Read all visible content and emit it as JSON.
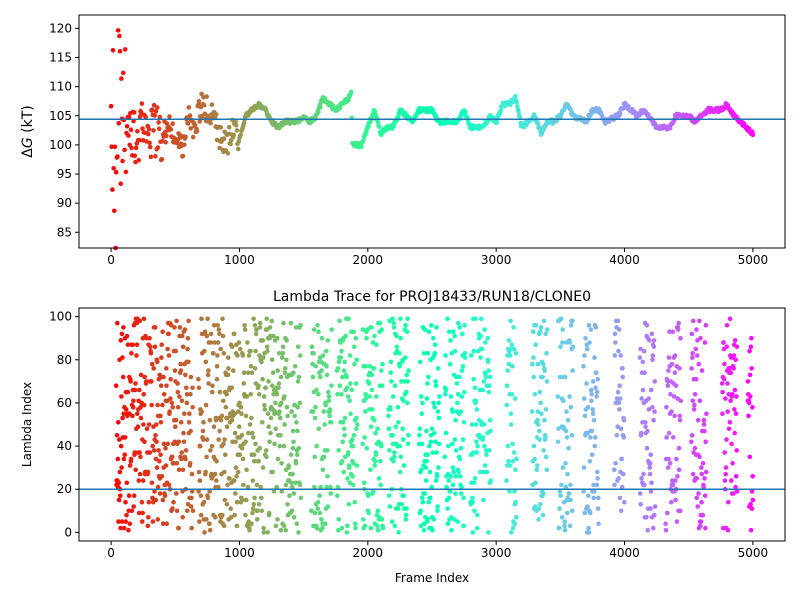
{
  "chart_data": [
    {
      "type": "scatter",
      "title": "",
      "xlabel": "",
      "ylabel": "ΔG (kT)",
      "xlim": [
        -250,
        5250
      ],
      "ylim": [
        82.3,
        122.3
      ],
      "xticks": [
        0,
        1000,
        2000,
        3000,
        4000,
        5000
      ],
      "yticks": [
        85,
        90,
        95,
        100,
        105,
        110,
        115,
        120
      ],
      "hline": 104.4,
      "hline_color": "#1f77b4",
      "colormap": "rainbow (red at frame 0 to violet at frame 5000)",
      "frames": 5000,
      "trace_keypoints": [
        [
          0,
          110
        ],
        [
          20,
          100
        ],
        [
          40,
          91
        ],
        [
          60,
          115
        ],
        [
          80,
          103
        ],
        [
          100,
          109
        ],
        [
          150,
          104
        ],
        [
          200,
          101
        ],
        [
          250,
          104
        ],
        [
          300,
          102
        ],
        [
          350,
          103
        ],
        [
          400,
          101
        ],
        [
          450,
          104
        ],
        [
          500,
          102
        ],
        [
          550,
          99
        ],
        [
          600,
          105
        ],
        [
          650,
          102
        ],
        [
          700,
          107
        ],
        [
          750,
          106
        ],
        [
          800,
          105
        ],
        [
          850,
          101
        ],
        [
          900,
          100
        ],
        [
          950,
          103
        ],
        [
          1000,
          101
        ],
        [
          1050,
          105
        ],
        [
          1100,
          106
        ],
        [
          1150,
          107
        ],
        [
          1200,
          106
        ],
        [
          1250,
          104
        ],
        [
          1300,
          103
        ],
        [
          1350,
          104
        ],
        [
          1400,
          104
        ],
        [
          1450,
          104
        ],
        [
          1500,
          105
        ],
        [
          1550,
          104
        ],
        [
          1600,
          105
        ],
        [
          1650,
          108
        ],
        [
          1700,
          107
        ],
        [
          1750,
          106
        ],
        [
          1800,
          107
        ],
        [
          1850,
          108
        ],
        [
          1870,
          109
        ],
        [
          1880,
          100
        ],
        [
          1950,
          100
        ],
        [
          2000,
          103
        ],
        [
          2050,
          106
        ],
        [
          2080,
          104
        ],
        [
          2100,
          102
        ],
        [
          2150,
          103
        ],
        [
          2200,
          103
        ],
        [
          2250,
          106
        ],
        [
          2300,
          105
        ],
        [
          2350,
          104
        ],
        [
          2400,
          106
        ],
        [
          2450,
          106
        ],
        [
          2500,
          106
        ],
        [
          2550,
          104
        ],
        [
          2600,
          104
        ],
        [
          2700,
          104
        ],
        [
          2750,
          106
        ],
        [
          2800,
          103
        ],
        [
          2900,
          103
        ],
        [
          2950,
          105
        ],
        [
          3000,
          104
        ],
        [
          3050,
          107
        ],
        [
          3100,
          107
        ],
        [
          3150,
          108
        ],
        [
          3200,
          103
        ],
        [
          3250,
          104
        ],
        [
          3300,
          105
        ],
        [
          3350,
          102
        ],
        [
          3400,
          104
        ],
        [
          3450,
          104
        ],
        [
          3500,
          105
        ],
        [
          3550,
          107
        ],
        [
          3600,
          105
        ],
        [
          3700,
          104
        ],
        [
          3750,
          106
        ],
        [
          3800,
          106
        ],
        [
          3850,
          104
        ],
        [
          3950,
          105
        ],
        [
          4000,
          107
        ],
        [
          4050,
          106
        ],
        [
          4100,
          105
        ],
        [
          4150,
          106
        ],
        [
          4250,
          103
        ],
        [
          4350,
          103
        ],
        [
          4400,
          105
        ],
        [
          4500,
          105
        ],
        [
          4550,
          104
        ],
        [
          4650,
          106
        ],
        [
          4750,
          106
        ],
        [
          4800,
          107
        ],
        [
          4850,
          105
        ],
        [
          4900,
          104
        ],
        [
          4950,
          103
        ],
        [
          5000,
          102
        ]
      ]
    },
    {
      "type": "scatter",
      "title": "Lambda Trace for PROJ18433/RUN18/CLONE0",
      "xlabel": "Frame Index",
      "ylabel": "Lambda Index",
      "xlim": [
        -250,
        5250
      ],
      "ylim": [
        -4,
        104
      ],
      "xticks": [
        0,
        1000,
        2000,
        3000,
        4000,
        5000
      ],
      "yticks": [
        0,
        20,
        40,
        60,
        80,
        100
      ],
      "hline": 20,
      "hline_color": "#1f77b4",
      "colormap": "rainbow (red at frame 0 to violet at frame 5000)",
      "frames": 5000,
      "lambda_range": [
        0,
        99
      ]
    }
  ],
  "panels": [
    {
      "ylabel_delta": "Δ",
      "ylabel_g": "G",
      "ylabel_rest": " (kT)",
      "xtick_labels": [
        "0",
        "1000",
        "2000",
        "3000",
        "4000",
        "5000"
      ],
      "ytick_labels": [
        "85",
        "90",
        "95",
        "100",
        "105",
        "110",
        "115",
        "120"
      ]
    },
    {
      "title": "Lambda Trace for PROJ18433/RUN18/CLONE0",
      "xlabel": "Frame Index",
      "ylabel": "Lambda Index",
      "xtick_labels": [
        "0",
        "1000",
        "2000",
        "3000",
        "4000",
        "5000"
      ],
      "ytick_labels": [
        "0",
        "20",
        "40",
        "60",
        "80",
        "100"
      ]
    }
  ]
}
